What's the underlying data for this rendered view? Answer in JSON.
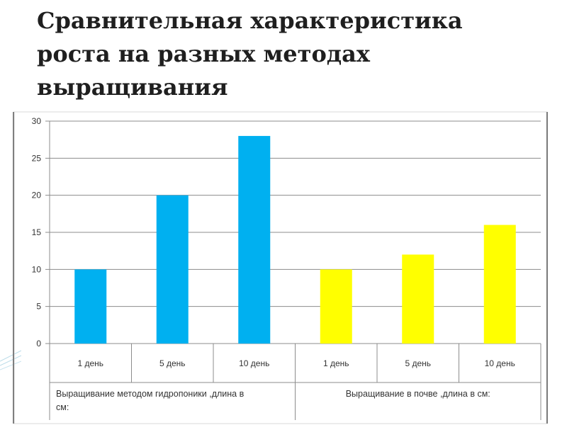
{
  "slide": {
    "title_lines": [
      "Сравнительная характеристика",
      "роста на разных методах",
      "выращивания"
    ]
  },
  "chart_data": {
    "type": "bar",
    "categories": [
      "1 день",
      "5 день",
      "10 день",
      "1 день",
      "5 день",
      "10 день"
    ],
    "groups": [
      {
        "label_lines": [
          "Выращивание методом гидропоники ,длина в",
          "см:"
        ],
        "category_indices": [
          0,
          1,
          2
        ],
        "color": "#00b0f0"
      },
      {
        "label_lines": [
          "Выращивание в почве ,длина в см:"
        ],
        "category_indices": [
          3,
          4,
          5
        ],
        "color": "#ffff00"
      }
    ],
    "values": [
      10,
      20,
      28,
      10,
      12,
      16
    ],
    "bar_colors": [
      "#00b0f0",
      "#00b0f0",
      "#00b0f0",
      "#ffff00",
      "#ffff00",
      "#ffff00"
    ],
    "ylim": [
      0,
      30
    ],
    "yticks": [
      0,
      5,
      10,
      15,
      20,
      25,
      30
    ],
    "grid": true,
    "title": "",
    "xlabel": "",
    "ylabel": ""
  }
}
